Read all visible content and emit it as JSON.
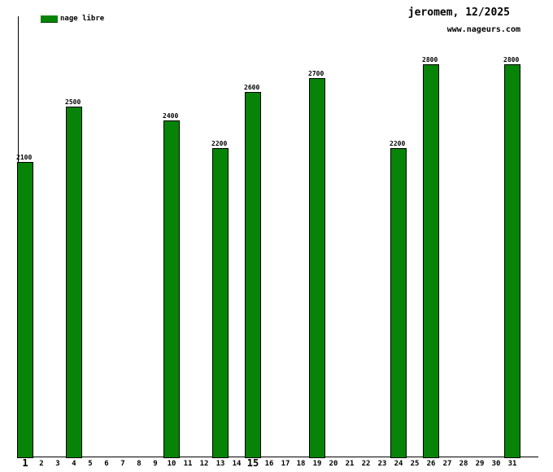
{
  "header": {
    "title": "jeromem, 12/2025",
    "website": "www.nageurs.com"
  },
  "legend": {
    "label": "nage libre",
    "color": "#078307"
  },
  "chart_data": {
    "type": "bar",
    "title": "jeromem, 12/2025",
    "xlabel": "",
    "ylabel": "",
    "grid": false,
    "legend_position": "top-left",
    "series_name": "nage libre",
    "bar_color": "#078307",
    "bar_border_color": "#000000",
    "categories": [
      1,
      2,
      3,
      4,
      5,
      6,
      7,
      8,
      9,
      10,
      11,
      12,
      13,
      14,
      15,
      16,
      17,
      18,
      19,
      20,
      21,
      22,
      23,
      24,
      25,
      26,
      27,
      28,
      29,
      30,
      31
    ],
    "values": [
      2100,
      null,
      null,
      2500,
      null,
      null,
      null,
      null,
      null,
      2400,
      null,
      null,
      2200,
      null,
      2600,
      null,
      null,
      null,
      2700,
      null,
      null,
      null,
      null,
      2200,
      null,
      2800,
      null,
      null,
      null,
      null,
      2800
    ],
    "emphasized_ticks": [
      1,
      15
    ],
    "ylim": [
      0,
      3140
    ],
    "value_labels_shown": true
  }
}
